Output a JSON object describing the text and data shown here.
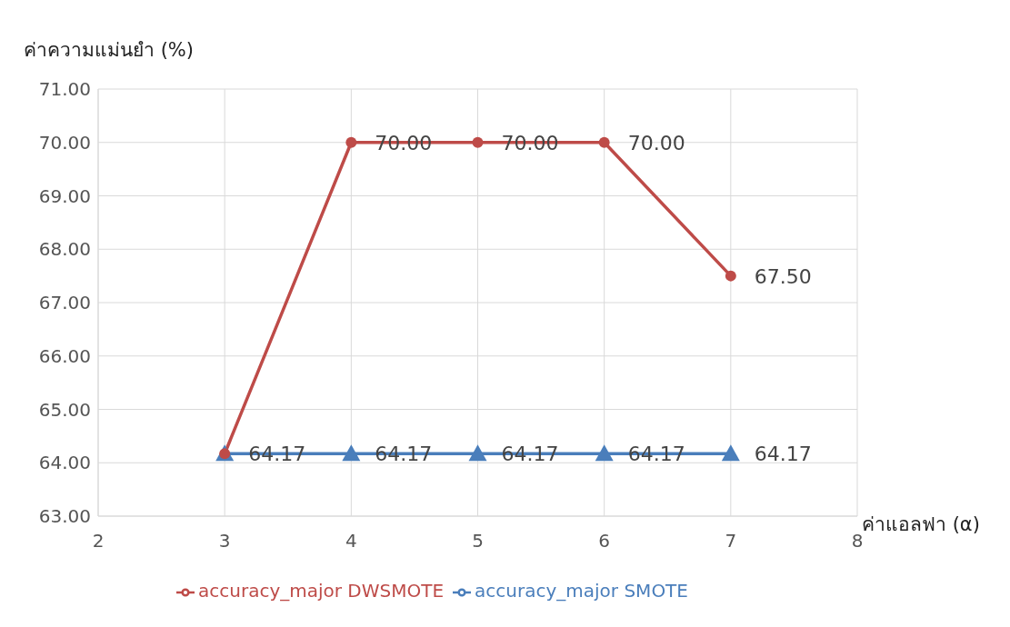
{
  "chart_data": {
    "type": "line",
    "xlabel": "ค่าแอลฟา (α)",
    "ylabel": "ค่าความแม่นยำ (%)",
    "x": [
      3,
      4,
      5,
      6,
      7
    ],
    "series": [
      {
        "name": "accuracy_major SMOTE",
        "color": "#4a7ebb",
        "marker": "triangle",
        "values": [
          64.17,
          64.17,
          64.17,
          64.17,
          64.17
        ],
        "value_labels": [
          "64.17",
          "64.17",
          "64.17",
          "64.17",
          "64.17"
        ]
      },
      {
        "name": "accuracy_major DWSMOTE",
        "color": "#be4b48",
        "marker": "circle",
        "values": [
          64.17,
          70,
          70,
          70,
          67.5
        ],
        "value_labels": [
          null,
          "70.00",
          "70.00",
          "70.00",
          "67.50"
        ]
      }
    ],
    "xlim": [
      2,
      8
    ],
    "xticks": [
      2,
      3,
      4,
      5,
      6,
      7,
      8
    ],
    "ylim": [
      63,
      71
    ],
    "yticks": [
      {
        "value": 63,
        "label": "63.00"
      },
      {
        "value": 64,
        "label": "64.00"
      },
      {
        "value": 65,
        "label": "65.00"
      },
      {
        "value": 66,
        "label": "66.00"
      },
      {
        "value": 67,
        "label": "67.00"
      },
      {
        "value": 68,
        "label": "68.00"
      },
      {
        "value": 69,
        "label": "69.00"
      },
      {
        "value": 70,
        "label": "70.00"
      },
      {
        "value": 71,
        "label": "71.00"
      }
    ],
    "grid": true,
    "legend": "bottom",
    "line_style": "solid"
  }
}
